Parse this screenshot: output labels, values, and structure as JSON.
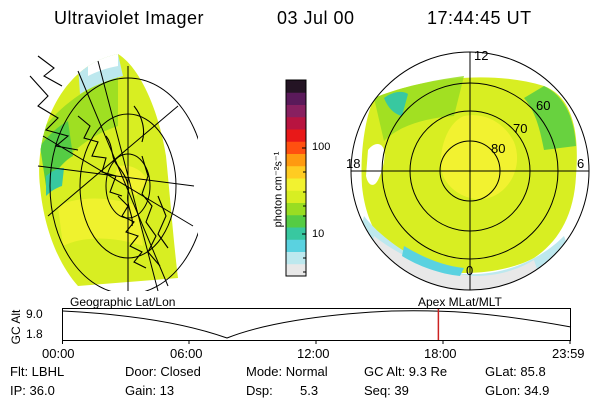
{
  "header": {
    "instrument": "Ultraviolet Imager",
    "date": "03 Jul 00",
    "time": "17:44:45 UT"
  },
  "colorbar": {
    "unit_label": "photon cm⁻²s⁻¹",
    "tick_100": "100",
    "tick_10": "10",
    "colors": [
      "#e8e8e8",
      "#bde8ee",
      "#5ad2e0",
      "#38c8a0",
      "#55cc44",
      "#99dd22",
      "#d8ee22",
      "#f2f230",
      "#ffcc22",
      "#ff9a10",
      "#ff5010",
      "#e81818",
      "#b81440",
      "#882060",
      "#5a1a5a",
      "#241424"
    ]
  },
  "polar": {
    "mlt_labels": {
      "top": "12",
      "left": "18",
      "right": "6",
      "bottom": "0"
    },
    "lat_labels": [
      "60",
      "70",
      "80"
    ]
  },
  "altitude_plot": {
    "axis_label": "GC Alt",
    "y_max": "9.0",
    "y_min": "1.8",
    "left_title": "Geographic Lat/Lon",
    "right_title": "Apex MLat/MLT",
    "x_ticks": [
      "00:00",
      "06:00",
      "12:00",
      "18:00",
      "23:59"
    ],
    "marker_time": "17:44:45",
    "marker_color": "#cc2222"
  },
  "info": {
    "row1": {
      "flt": "Flt: LBHL",
      "door": "Door: Closed",
      "mode": "Mode: Normal",
      "gc_alt": "GC Alt: 9.3 Re",
      "glat": "GLat: 85.8"
    },
    "row2": {
      "ip": "IP: 36.0",
      "gain": "Gain: 13",
      "dsp_label": "Dsp:",
      "dsp_value": "5.3",
      "seq": "Seq: 39",
      "glon": "GLon: 34.9"
    }
  }
}
